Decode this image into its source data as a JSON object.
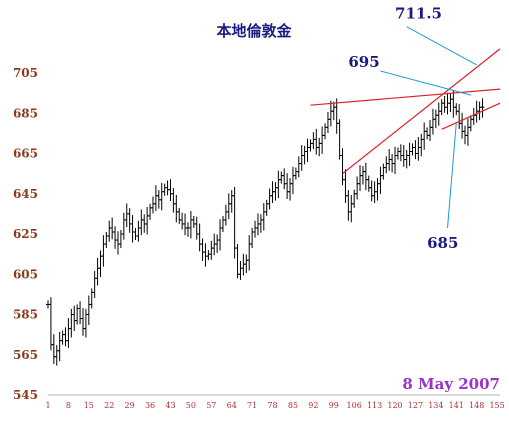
{
  "chart_data": {
    "type": "ohlc",
    "title": "本地倫敦金",
    "xlabel": "",
    "ylabel": "",
    "ylim": [
      545,
      705
    ],
    "y_ticks": [
      545,
      565,
      585,
      605,
      625,
      645,
      665,
      685,
      705
    ],
    "x_ticks": [
      "1",
      "8",
      "15",
      "22",
      "29",
      "36",
      "43",
      "50",
      "57",
      "64",
      "71",
      "78",
      "85",
      "92",
      "99",
      "106",
      "113",
      "120",
      "127",
      "134",
      "141",
      "148",
      "155"
    ],
    "x_range": [
      1,
      156
    ],
    "grid": false,
    "date_label": "8 May 2007",
    "closes": [
      590,
      570,
      564,
      567,
      572,
      575,
      572,
      578,
      585,
      582,
      588,
      583,
      578,
      585,
      590,
      596,
      603,
      608,
      614,
      620,
      624,
      628,
      626,
      622,
      620,
      625,
      632,
      635,
      630,
      626,
      624,
      628,
      632,
      630,
      634,
      638,
      640,
      644,
      642,
      646,
      648,
      647,
      645,
      640,
      636,
      632,
      630,
      628,
      628,
      632,
      630,
      625,
      620,
      616,
      614,
      615,
      618,
      620,
      622,
      628,
      632,
      636,
      640,
      644,
      618,
      605,
      608,
      610,
      612,
      620,
      626,
      628,
      630,
      632,
      636,
      640,
      644,
      646,
      648,
      652,
      654,
      650,
      646,
      650,
      654,
      656,
      660,
      664,
      666,
      668,
      670,
      672,
      668,
      670,
      674,
      678,
      682,
      686,
      688,
      680,
      664,
      652,
      644,
      636,
      640,
      645,
      650,
      654,
      656,
      652,
      648,
      644,
      646,
      650,
      654,
      658,
      660,
      662,
      660,
      664,
      666,
      664,
      662,
      664,
      666,
      668,
      665,
      668,
      672,
      676,
      674,
      678,
      682,
      684,
      686,
      690,
      688,
      690,
      692,
      688,
      686,
      680,
      676,
      674,
      678,
      682,
      684,
      686,
      688,
      688
    ],
    "trendlines": [
      {
        "x1": 91,
        "y1": 689,
        "x2": 156,
        "y2": 697,
        "color": "#e0202a"
      },
      {
        "x1": 102,
        "y1": 655,
        "x2": 156,
        "y2": 717,
        "color": "#e0202a"
      },
      {
        "x1": 136,
        "y1": 677,
        "x2": 156,
        "y2": 690,
        "color": "#e0202a"
      }
    ],
    "annotations": [
      {
        "text": "711.5",
        "tx": 120,
        "ty": 732,
        "lx1": 124,
        "ly1": 728,
        "lx2": 148,
        "ly2": 709
      },
      {
        "text": "695",
        "tx": 104,
        "ty": 708,
        "lx1": 115,
        "ly1": 706,
        "lx2": 146,
        "ly2": 694
      },
      {
        "text": "685",
        "tx": 131,
        "ty": 618,
        "lx1": 138,
        "ly1": 628,
        "lx2": 141,
        "ly2": 680
      }
    ]
  }
}
